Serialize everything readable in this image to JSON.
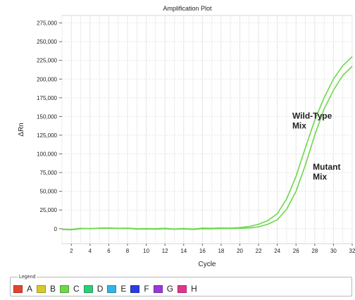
{
  "chart_data": {
    "type": "line",
    "title": "Amplification Plot",
    "xlabel": "Cycle",
    "ylabel": "ΔRn",
    "xlim": [
      1,
      32
    ],
    "ylim": [
      -20000,
      285000
    ],
    "x_ticks": [
      2,
      4,
      6,
      8,
      10,
      12,
      14,
      16,
      18,
      20,
      22,
      24,
      26,
      28,
      30,
      32
    ],
    "y_ticks": [
      0,
      25000,
      50000,
      75000,
      100000,
      125000,
      150000,
      175000,
      200000,
      225000,
      250000,
      275000
    ],
    "y_tick_labels": [
      "0",
      "25,000",
      "50,000",
      "75,000",
      "100,000",
      "125,000",
      "150,000",
      "175,000",
      "200,000",
      "225,000",
      "250,000",
      "275,000"
    ],
    "grid": true,
    "series": [
      {
        "x": [
          1,
          2,
          3,
          4,
          5,
          6,
          7,
          8,
          9,
          10,
          11,
          12,
          13,
          14,
          15,
          16,
          17,
          18,
          19,
          20,
          21,
          22,
          23,
          24,
          25,
          26,
          27,
          28,
          29,
          30,
          31,
          32
        ],
        "values": [
          -500,
          -1000,
          500,
          0,
          800,
          1000,
          500,
          800,
          0,
          200,
          0,
          500,
          -500,
          300,
          -500,
          800,
          500,
          1000,
          800,
          1500,
          3000,
          6000,
          11000,
          20000,
          40000,
          70000,
          108000,
          145000,
          175000,
          200000,
          218000,
          230000
        ],
        "color": "#6cd84a"
      },
      {
        "x": [
          1,
          2,
          3,
          4,
          5,
          6,
          7,
          8,
          9,
          10,
          11,
          12,
          13,
          14,
          15,
          16,
          17,
          18,
          19,
          20,
          21,
          22,
          23,
          24,
          25,
          26,
          27,
          28,
          29,
          30,
          31,
          32
        ],
        "values": [
          -1000,
          -1500,
          0,
          200,
          500,
          600,
          300,
          400,
          -500,
          -300,
          -600,
          0,
          -800,
          -300,
          -1000,
          0,
          -200,
          300,
          200,
          500,
          1000,
          2500,
          6000,
          12000,
          26000,
          50000,
          85000,
          125000,
          160000,
          185000,
          205000,
          217000
        ],
        "color": "#6cd84a"
      }
    ],
    "annotations": [
      {
        "text": [
          "Wild-Type",
          "Mix"
        ],
        "x": 25.6,
        "y": 147000
      },
      {
        "text": [
          "Mutant",
          "Mix"
        ],
        "x": 27.8,
        "y": 79000
      }
    ]
  },
  "legend": {
    "title": "Legend",
    "items": [
      {
        "label": "A",
        "color": "#e2452f"
      },
      {
        "label": "B",
        "color": "#d7c92c"
      },
      {
        "label": "C",
        "color": "#6cd84a"
      },
      {
        "label": "D",
        "color": "#2dce79"
      },
      {
        "label": "E",
        "color": "#31b6e3"
      },
      {
        "label": "F",
        "color": "#2b3de0"
      },
      {
        "label": "G",
        "color": "#9a38dc"
      },
      {
        "label": "H",
        "color": "#e0358e"
      }
    ]
  }
}
